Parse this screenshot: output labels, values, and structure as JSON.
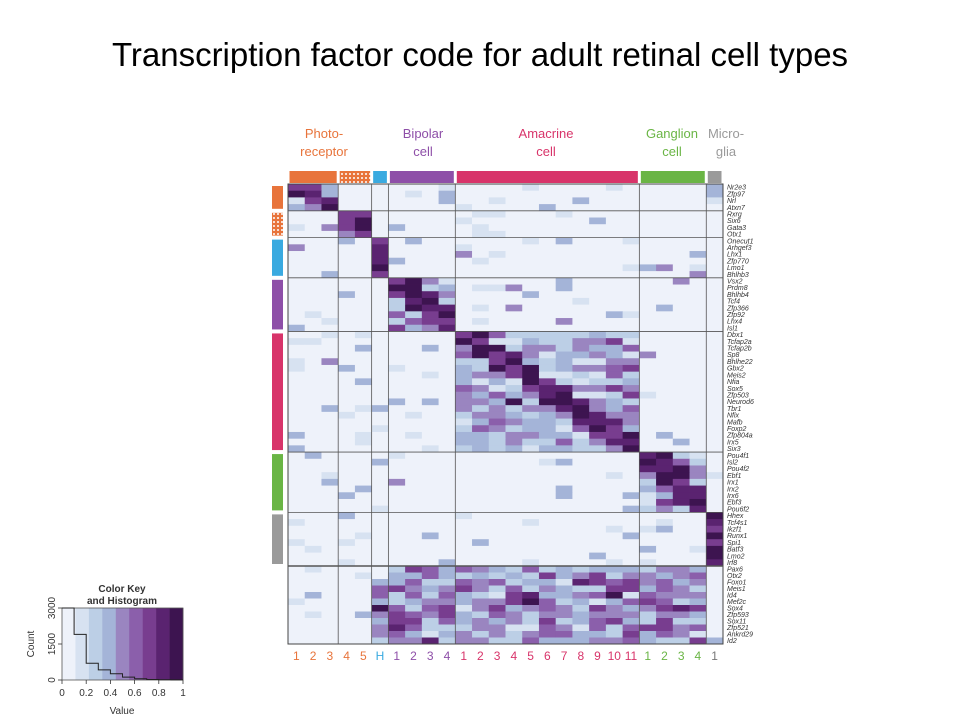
{
  "title": "Transcription factor code for adult retinal cell types",
  "chart_data": {
    "type": "heatmap",
    "column_groups": [
      {
        "label_lines": [
          "Photo-",
          "receptor"
        ],
        "color": "#e8743b"
      },
      {
        "label_lines": [
          "Bipolar",
          "cell"
        ],
        "color": "#8e4fa8"
      },
      {
        "label_lines": [
          "Amacrine",
          "cell"
        ],
        "color": "#d8346a"
      },
      {
        "label_lines": [
          "Ganglion",
          "cell"
        ],
        "color": "#6ab545"
      },
      {
        "label_lines": [
          "Micro-",
          "glia"
        ],
        "color": "#9a9a9a"
      }
    ],
    "column_labels": [
      {
        "text": "1",
        "color": "#e8743b"
      },
      {
        "text": "2",
        "color": "#e8743b"
      },
      {
        "text": "3",
        "color": "#e8743b"
      },
      {
        "text": "4",
        "color": "#e8743b"
      },
      {
        "text": "5",
        "color": "#e8743b"
      },
      {
        "text": "H",
        "color": "#3aaae0"
      },
      {
        "text": "1",
        "color": "#8e4fa8"
      },
      {
        "text": "2",
        "color": "#8e4fa8"
      },
      {
        "text": "3",
        "color": "#8e4fa8"
      },
      {
        "text": "4",
        "color": "#8e4fa8"
      },
      {
        "text": "1",
        "color": "#d8346a"
      },
      {
        "text": "2",
        "color": "#d8346a"
      },
      {
        "text": "3",
        "color": "#d8346a"
      },
      {
        "text": "4",
        "color": "#d8346a"
      },
      {
        "text": "5",
        "color": "#d8346a"
      },
      {
        "text": "6",
        "color": "#d8346a"
      },
      {
        "text": "7",
        "color": "#d8346a"
      },
      {
        "text": "8",
        "color": "#d8346a"
      },
      {
        "text": "9",
        "color": "#d8346a"
      },
      {
        "text": "10",
        "color": "#d8346a"
      },
      {
        "text": "11",
        "color": "#d8346a"
      },
      {
        "text": "1",
        "color": "#6ab545"
      },
      {
        "text": "2",
        "color": "#6ab545"
      },
      {
        "text": "3",
        "color": "#6ab545"
      },
      {
        "text": "4",
        "color": "#6ab545"
      },
      {
        "text": "1",
        "color": "#777777"
      }
    ],
    "row_labels": [
      "Nr2e3",
      "Zfp97",
      "Nrl",
      "Atxn7",
      "Rxrg",
      "Six6",
      "Gata3",
      "Otx1",
      "Onecut1",
      "Arhgef3",
      "Lhx1",
      "Zfp770",
      "Lmo1",
      "Bhlhb3",
      "Vsx2",
      "Prdm8",
      "Bhlhb4",
      "Tcf4",
      "Zfp366",
      "Zfp92",
      "Lhx4",
      "Isl1",
      "Dbx1",
      "Tcfap2a",
      "Tcfap2b",
      "Sp8",
      "Bhlhe22",
      "Gbx2",
      "Meis2",
      "Nfia",
      "Sox5",
      "Zfp503",
      "Neurod6",
      "Tbr1",
      "Nfix",
      "Mafb",
      "Foxp2",
      "Zfp804a",
      "Irx5",
      "Six3",
      "Pou4f1",
      "Isl2",
      "Pou4f2",
      "Ebf1",
      "Irx1",
      "Irx2",
      "Irx6",
      "Ebf3",
      "Pou6f2",
      "Hhex",
      "Tcf4s1",
      "Ikzf1",
      "Runx1",
      "Spi1",
      "Batf3",
      "Lmo2",
      "Irf8",
      "Pax6",
      "Otx2",
      "Foxo1",
      "Meis1",
      "Id4",
      "Mef2c",
      "Sox4",
      "Zfp593",
      "Sox11",
      "Zfp521",
      "Ankrd29",
      "Id2"
    ],
    "value_range": [
      0,
      1
    ],
    "color_key": {
      "title_lines": [
        "Color Key",
        "and Histogram"
      ],
      "xlabel": "Value",
      "ylabel": "Count",
      "x_ticks": [
        "0",
        "0.2",
        "0.4",
        "0.6",
        "0.8",
        "1"
      ],
      "y_ticks": [
        "0",
        "1500",
        "3000"
      ],
      "palette": [
        "#eef2fa",
        "#d7e2f1",
        "#bccfe6",
        "#a4b4d8",
        "#9a85c0",
        "#8b5fab",
        "#783d8f",
        "#5a2370",
        "#3d1450"
      ],
      "histogram": [
        {
          "value": 0.0,
          "count": 3100
        },
        {
          "value": 0.1,
          "count": 1900
        },
        {
          "value": 0.2,
          "count": 700
        },
        {
          "value": 0.3,
          "count": 420
        },
        {
          "value": 0.4,
          "count": 260
        },
        {
          "value": 0.5,
          "count": 120
        },
        {
          "value": 0.6,
          "count": 50
        },
        {
          "value": 0.7,
          "count": 20
        },
        {
          "value": 0.8,
          "count": 8
        },
        {
          "value": 0.9,
          "count": 3
        }
      ]
    }
  }
}
